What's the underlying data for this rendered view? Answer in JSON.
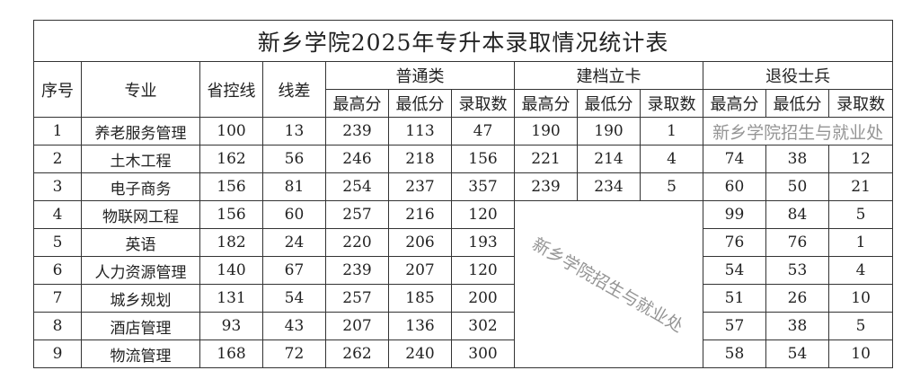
{
  "title": "新乡学院2025年专升本录取情况统计表",
  "headers": {
    "index": "序号",
    "major": "专业",
    "provincial_line": "省控线",
    "line_diff": "线差",
    "groups": [
      "普通类",
      "建档立卡",
      "退役士兵"
    ],
    "sub": [
      "最高分",
      "最低分",
      "录取数"
    ]
  },
  "rows": [
    {
      "no": "1",
      "major": "养老服务管理",
      "line": "100",
      "diff": "13",
      "regular": [
        "239",
        "113",
        "47"
      ],
      "poverty": [
        "190",
        "190",
        "1"
      ],
      "veteran": null
    },
    {
      "no": "2",
      "major": "土木工程",
      "line": "162",
      "diff": "56",
      "regular": [
        "246",
        "218",
        "156"
      ],
      "poverty": [
        "221",
        "214",
        "4"
      ],
      "veteran": [
        "74",
        "38",
        "12"
      ]
    },
    {
      "no": "3",
      "major": "电子商务",
      "line": "156",
      "diff": "81",
      "regular": [
        "254",
        "237",
        "357"
      ],
      "poverty": [
        "239",
        "234",
        "5"
      ],
      "veteran": [
        "60",
        "50",
        "21"
      ]
    },
    {
      "no": "4",
      "major": "物联网工程",
      "line": "156",
      "diff": "60",
      "regular": [
        "257",
        "216",
        "120"
      ],
      "poverty": null,
      "veteran": [
        "99",
        "84",
        "5"
      ]
    },
    {
      "no": "5",
      "major": "英语",
      "line": "182",
      "diff": "24",
      "regular": [
        "220",
        "206",
        "193"
      ],
      "poverty": null,
      "veteran": [
        "76",
        "76",
        "1"
      ]
    },
    {
      "no": "6",
      "major": "人力资源管理",
      "line": "140",
      "diff": "67",
      "regular": [
        "239",
        "207",
        "120"
      ],
      "poverty": null,
      "veteran": [
        "54",
        "53",
        "4"
      ]
    },
    {
      "no": "7",
      "major": "城乡规划",
      "line": "131",
      "diff": "54",
      "regular": [
        "257",
        "185",
        "200"
      ],
      "poverty": null,
      "veteran": [
        "51",
        "26",
        "10"
      ]
    },
    {
      "no": "8",
      "major": "酒店管理",
      "line": "93",
      "diff": "43",
      "regular": [
        "207",
        "136",
        "302"
      ],
      "poverty": null,
      "veteran": [
        "57",
        "38",
        "5"
      ]
    },
    {
      "no": "9",
      "major": "物流管理",
      "line": "168",
      "diff": "72",
      "regular": [
        "262",
        "240",
        "300"
      ],
      "poverty": null,
      "veteran": [
        "58",
        "54",
        "10"
      ]
    }
  ],
  "watermark": "新乡学院招生与就业处"
}
